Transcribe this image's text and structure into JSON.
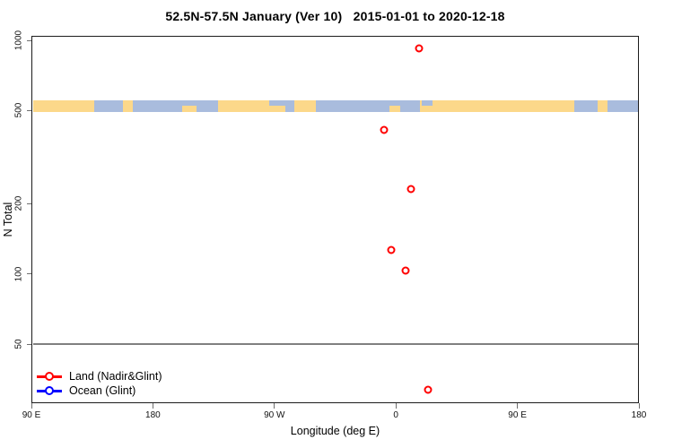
{
  "chart_data": {
    "type": "scatter",
    "title": "52.5N-57.5N January (Ver 10)   2015-01-01 to 2020-12-18",
    "xlabel": "Longitude (deg E)",
    "ylabel": "N Total",
    "x_axis": {
      "span_deg": 450,
      "ticks": [
        {
          "pos_deg": 0,
          "label": "90 E"
        },
        {
          "pos_deg": 90,
          "label": "180"
        },
        {
          "pos_deg": 180,
          "label": "90 W"
        },
        {
          "pos_deg": 270,
          "label": "0"
        },
        {
          "pos_deg": 360,
          "label": "90 E"
        },
        {
          "pos_deg": 450,
          "label": "180"
        }
      ]
    },
    "y_axis": {
      "scale": "log",
      "ticks": [
        1000,
        500,
        200,
        100,
        50
      ]
    },
    "reference_line": {
      "n": 50,
      "color": "#808080"
    },
    "series": [
      {
        "name": "Land (Nadir&Glint)",
        "color": "#ff0000",
        "points": [
          {
            "lon": 17.0,
            "n": 925
          },
          {
            "lon": -8.5,
            "n": 413
          },
          {
            "lon": 11.0,
            "n": 231
          },
          {
            "lon": -3.5,
            "n": 126
          },
          {
            "lon": 7.0,
            "n": 103
          },
          {
            "lon": 23.5,
            "n": 32
          }
        ]
      },
      {
        "name": "Ocean (Glint)",
        "color": "#0000ff",
        "points": []
      }
    ],
    "map_band": {
      "center_n": 500,
      "land_color": "#fcd88a",
      "ocean_color": "#a9bcdd",
      "segments": [
        {
          "from_deg": 0,
          "to_deg": 46.5,
          "type": "land"
        },
        {
          "from_deg": 46.5,
          "to_deg": 67.8,
          "type": "ocean"
        },
        {
          "from_deg": 67.8,
          "to_deg": 75.1,
          "type": "land"
        },
        {
          "from_deg": 75.1,
          "to_deg": 138.3,
          "type": "ocean"
        },
        {
          "from_deg": 138.3,
          "to_deg": 188.1,
          "type": "land"
        },
        {
          "from_deg": 188.1,
          "to_deg": 194.8,
          "type": "ocean"
        },
        {
          "from_deg": 194.8,
          "to_deg": 210.7,
          "type": "land"
        },
        {
          "from_deg": 210.7,
          "to_deg": 287.9,
          "type": "ocean"
        },
        {
          "from_deg": 287.9,
          "to_deg": 402.2,
          "type": "land"
        },
        {
          "from_deg": 402.2,
          "to_deg": 419.5,
          "type": "ocean"
        },
        {
          "from_deg": 419.5,
          "to_deg": 426.8,
          "type": "land"
        },
        {
          "from_deg": 426.8,
          "to_deg": 450,
          "type": "ocean"
        }
      ],
      "details": [
        {
          "from_deg": 112,
          "to_deg": 122,
          "type": "land",
          "vertical": "bottom"
        },
        {
          "from_deg": 176,
          "to_deg": 190,
          "type": "ocean",
          "vertical": "top"
        },
        {
          "from_deg": 265.5,
          "to_deg": 273.5,
          "type": "land",
          "vertical": "bottom"
        },
        {
          "from_deg": 289,
          "to_deg": 297,
          "type": "ocean",
          "vertical": "top"
        }
      ]
    },
    "legend": {
      "items": [
        {
          "label": "Land (Nadir&Glint)",
          "color": "#ff0000"
        },
        {
          "label": "Ocean (Glint)",
          "color": "#0000ff"
        }
      ]
    }
  }
}
